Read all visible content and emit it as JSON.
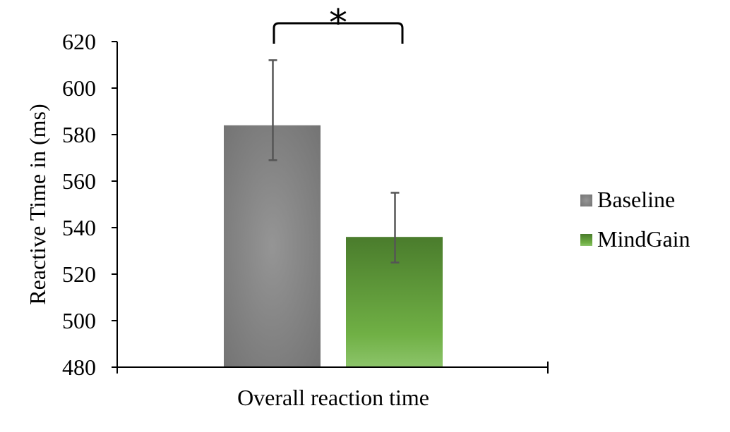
{
  "chart_data": {
    "type": "bar",
    "categories": [
      "Overall reaction time"
    ],
    "series": [
      {
        "name": "Baseline",
        "values": [
          584
        ],
        "error_low": [
          569
        ],
        "error_high": [
          612
        ],
        "color": "#7f7f7f"
      },
      {
        "name": "MindGain",
        "values": [
          536
        ],
        "error_low": [
          525
        ],
        "error_high": [
          555
        ],
        "color": "#5f9a3c"
      }
    ],
    "xlabel": "Overall reaction time",
    "ylabel": "Reactive Time in (ms)",
    "ylim": [
      480,
      620
    ],
    "yticks": [
      "480",
      "500",
      "520",
      "540",
      "560",
      "580",
      "600",
      "620"
    ],
    "legend_position": "right",
    "annotation": "*",
    "grid": false
  }
}
